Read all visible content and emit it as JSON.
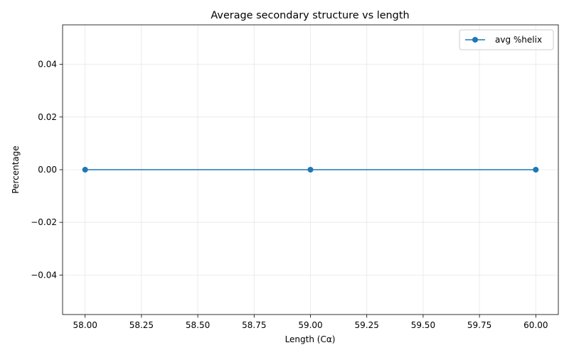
{
  "chart_data": {
    "type": "line",
    "title": "Average secondary structure vs length",
    "xlabel": "Length (Cα)",
    "ylabel": "Percentage",
    "x": [
      58,
      59,
      60
    ],
    "series": [
      {
        "name": "avg %helix",
        "values": [
          0,
          0,
          0
        ],
        "color": "#1f77b4"
      }
    ],
    "xlim": [
      57.9,
      60.1
    ],
    "ylim": [
      -0.055,
      0.055
    ],
    "xticks": [
      58.0,
      58.25,
      58.5,
      58.75,
      59.0,
      59.25,
      59.5,
      59.75,
      60.0
    ],
    "xtick_labels": [
      "58.00",
      "58.25",
      "58.50",
      "58.75",
      "59.00",
      "59.25",
      "59.50",
      "59.75",
      "60.00"
    ],
    "yticks": [
      -0.04,
      -0.02,
      0.0,
      0.02,
      0.04
    ],
    "ytick_labels": [
      "−0.04",
      "−0.02",
      "0.00",
      "0.02",
      "0.04"
    ],
    "grid": true,
    "legend_position": "upper right"
  }
}
